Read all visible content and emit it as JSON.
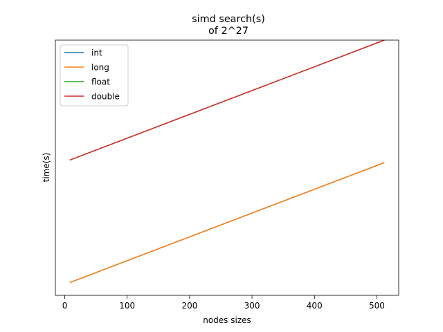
{
  "chart_data": {
    "type": "line",
    "title": "simd search(s)\nof 2^27",
    "title_lines": [
      "simd search(s)",
      "of 2^27"
    ],
    "xlabel": "nodes sizes",
    "ylabel": "time(s)",
    "xlim": [
      -15,
      535
    ],
    "ylim": [
      0,
      1
    ],
    "xticks": [
      0,
      100,
      200,
      300,
      400,
      500
    ],
    "yticks": [],
    "grid": false,
    "legend_position": "top-left",
    "series": [
      {
        "name": "int",
        "color": "#1f77b4",
        "x": [
          8,
          512
        ],
        "y": [
          0.05,
          0.52
        ]
      },
      {
        "name": "long",
        "color": "#ff7f0e",
        "x": [
          8,
          512
        ],
        "y": [
          0.05,
          0.52
        ]
      },
      {
        "name": "float",
        "color": "#2ca02c",
        "x": [
          8,
          512
        ],
        "y": [
          0.53,
          1.0
        ]
      },
      {
        "name": "double",
        "color": "#d62728",
        "x": [
          8,
          512
        ],
        "y": [
          0.53,
          1.0
        ]
      }
    ]
  }
}
